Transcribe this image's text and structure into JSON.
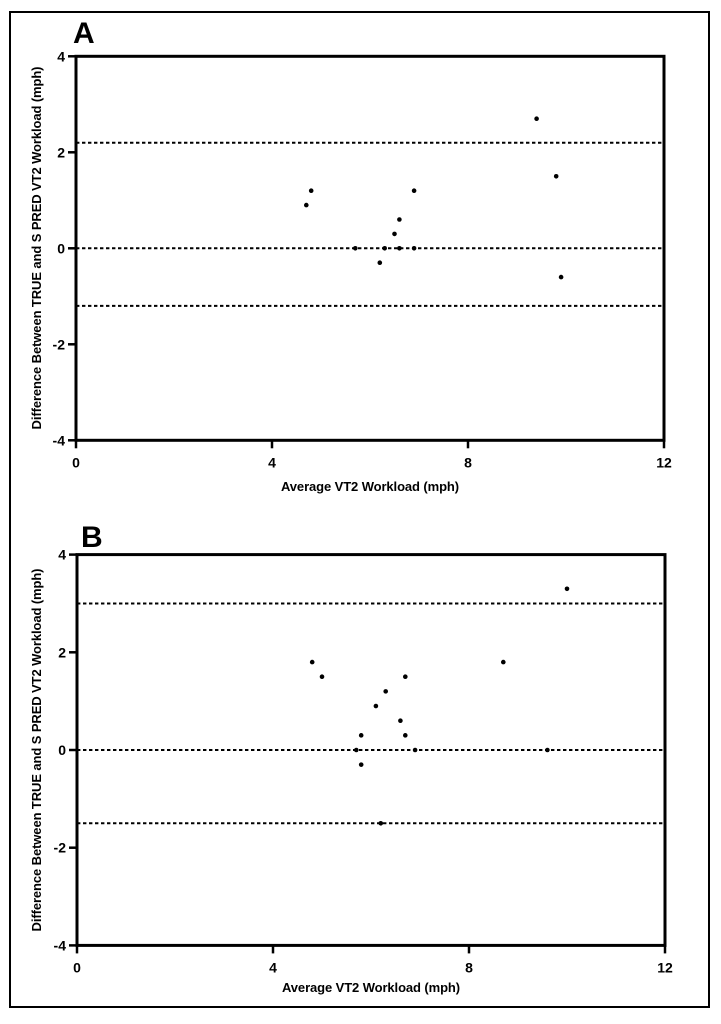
{
  "figure": {
    "background": "#ffffff",
    "border_color": "#000000"
  },
  "colors": {
    "foreground": "#000000",
    "background": "#ffffff"
  },
  "chart_data": [
    {
      "type": "scatter",
      "panel_label": "A",
      "xlabel": "Average VT2 Workload (mph)",
      "ylabel": "Difference Between TRUE and S PRED VT2 Workload (mph)",
      "xlim": [
        0,
        12
      ],
      "ylim": [
        -4,
        4
      ],
      "xticks": [
        0,
        4,
        8,
        12
      ],
      "yticks": [
        4,
        2,
        0,
        -2,
        -4
      ],
      "grid": false,
      "legend": null,
      "marker": "dot",
      "reference_lines": [
        {
          "name": "upper_limit_of_agreement",
          "value": 2.2,
          "style": "dashed"
        },
        {
          "name": "mean_bias",
          "value": 0.0,
          "style": "dashed"
        },
        {
          "name": "lower_limit_of_agreement",
          "value": -1.2,
          "style": "dashed"
        }
      ],
      "points": [
        [
          4.7,
          0.9
        ],
        [
          4.8,
          1.2
        ],
        [
          5.7,
          0.0
        ],
        [
          6.2,
          -0.3
        ],
        [
          6.3,
          0.0
        ],
        [
          6.5,
          0.3
        ],
        [
          6.6,
          0.6
        ],
        [
          6.6,
          0.0
        ],
        [
          6.9,
          1.2
        ],
        [
          6.9,
          0.0
        ],
        [
          9.4,
          2.7
        ],
        [
          9.8,
          1.5
        ],
        [
          9.9,
          -0.6
        ]
      ]
    },
    {
      "type": "scatter",
      "panel_label": "B",
      "xlabel": "Average VT2 Workload (mph)",
      "ylabel": "Difference Between TRUE and S PRED VT2 Workload (mph)",
      "xlim": [
        0,
        12
      ],
      "ylim": [
        -4,
        4
      ],
      "xticks": [
        0,
        4,
        8,
        12
      ],
      "yticks": [
        4,
        2,
        0,
        -2,
        -4
      ],
      "grid": false,
      "legend": null,
      "marker": "dot",
      "reference_lines": [
        {
          "name": "upper_limit_of_agreement",
          "value": 3.0,
          "style": "dashed"
        },
        {
          "name": "mean_bias",
          "value": 0.0,
          "style": "dashed"
        },
        {
          "name": "lower_limit_of_agreement",
          "value": -1.5,
          "style": "dashed"
        }
      ],
      "points": [
        [
          4.8,
          1.8
        ],
        [
          5.0,
          1.5
        ],
        [
          5.7,
          0.0
        ],
        [
          5.8,
          0.3
        ],
        [
          5.8,
          -0.3
        ],
        [
          6.1,
          0.9
        ],
        [
          6.2,
          -1.5
        ],
        [
          6.3,
          1.2
        ],
        [
          6.6,
          0.6
        ],
        [
          6.7,
          1.5
        ],
        [
          6.7,
          0.3
        ],
        [
          6.9,
          0.0
        ],
        [
          8.7,
          1.8
        ],
        [
          9.6,
          0.0
        ],
        [
          10.0,
          3.3
        ]
      ]
    }
  ]
}
